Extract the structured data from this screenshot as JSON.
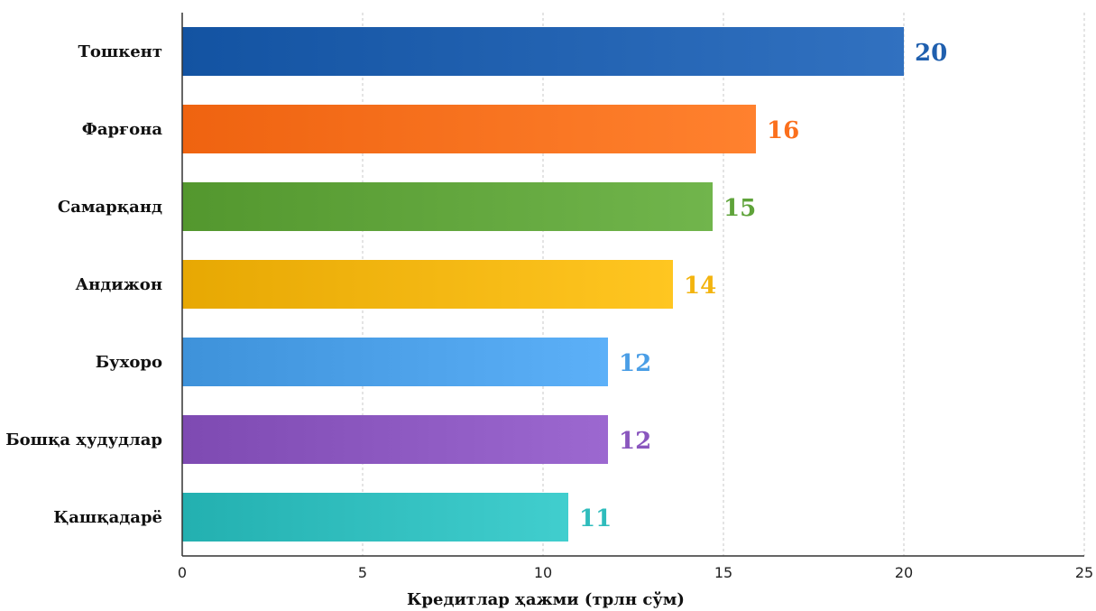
{
  "chart_data": {
    "type": "bar",
    "orientation": "horizontal",
    "categories": [
      "Тошкент",
      "Фарғона",
      "Самарқанд",
      "Андижон",
      "Бухоро",
      "Бошқа ҳудудлар",
      "Қашқадарё"
    ],
    "values": [
      20,
      15.9,
      14.7,
      13.6,
      11.8,
      11.8,
      10.7
    ],
    "value_labels": [
      "20",
      "16",
      "15",
      "14",
      "12",
      "12",
      "11"
    ],
    "colors": [
      "#1f5fae",
      "#fb6f1c",
      "#5fa33a",
      "#f3b40f",
      "#4a9ee6",
      "#8a56be",
      "#2fbcbc"
    ],
    "xlabel": "Кредитлар ҳажми (трлн сўм)",
    "xlim": [
      0,
      25
    ],
    "xticks": [
      "0",
      "5",
      "10",
      "15",
      "20",
      "25"
    ],
    "grid": "vertical-dashed",
    "legend": "none"
  }
}
